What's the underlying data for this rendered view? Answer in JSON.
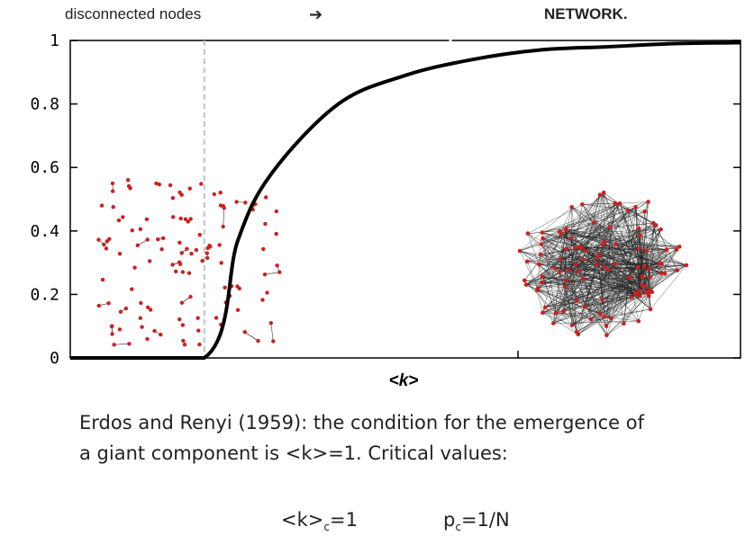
{
  "header": {
    "left_label": "disconnected nodes",
    "arrow": "➔",
    "right_label": "NETWORK."
  },
  "chart_data": {
    "type": "line",
    "title": "",
    "xlabel": "<k>",
    "ylabel": "",
    "ylim": [
      0,
      1
    ],
    "yticks": [
      "0",
      "0.2",
      "0.4",
      "0.6",
      "0.8",
      "1"
    ],
    "xlim": [
      0,
      5
    ],
    "critical_point": 1,
    "series": [
      {
        "x": [
          0,
          1,
          1.25,
          1.5,
          2,
          2.5,
          3,
          3.5,
          4,
          4.5,
          5
        ],
        "y": [
          0,
          0,
          0.37,
          0.58,
          0.8,
          0.89,
          0.94,
          0.97,
          0.98,
          0.99,
          0.993
        ]
      }
    ],
    "line_color": "#000000",
    "node_color": "#cc1f1f",
    "grid": false
  },
  "caption": {
    "line1": "Erdos and Renyi (1959): the condition for the emergence of",
    "line2": "a giant component is <k>=1. Critical values:"
  },
  "critical": {
    "k_main": "<k>",
    "k_sub": "c",
    "k_val": "=1",
    "p_main": "p",
    "p_sub": "c",
    "p_val": "=1/N"
  }
}
